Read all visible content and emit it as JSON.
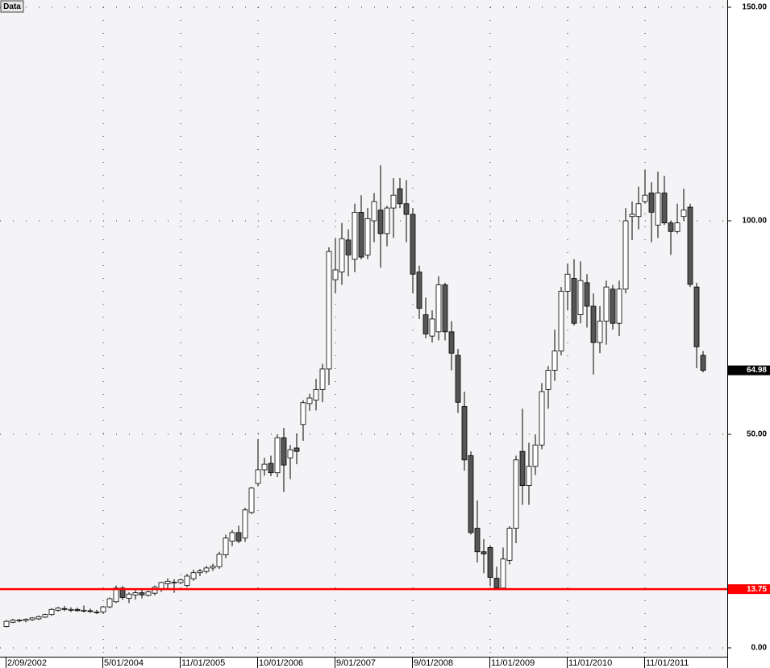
{
  "chart_data": {
    "type": "candlestick",
    "title": "Data",
    "ylim": [
      0,
      150
    ],
    "yticks": [
      {
        "value": 0,
        "label": "0.00"
      },
      {
        "value": 50,
        "label": "50.00"
      },
      {
        "value": 100,
        "label": "100.00"
      },
      {
        "value": 150,
        "label": "150.00"
      }
    ],
    "grid": true,
    "up_color": "#ffffff",
    "down_color": "#555555",
    "categories": [
      "2/09/2002",
      null,
      null,
      null,
      null,
      null,
      null,
      null,
      null,
      null,
      null,
      null,
      null,
      null,
      null,
      "5/01/2004",
      null,
      null,
      null,
      null,
      null,
      null,
      null,
      null,
      null,
      null,
      null,
      "11/01/2005",
      null,
      null,
      null,
      null,
      null,
      null,
      null,
      null,
      null,
      null,
      null,
      "10/01/2006",
      null,
      null,
      null,
      null,
      null,
      null,
      null,
      null,
      null,
      null,
      null,
      "9/01/2007",
      null,
      null,
      null,
      null,
      null,
      null,
      null,
      null,
      null,
      null,
      null,
      "9/01/2008",
      null,
      null,
      null,
      null,
      null,
      null,
      null,
      null,
      null,
      null,
      null,
      "11/01/2009",
      null,
      null,
      null,
      null,
      null,
      null,
      null,
      null,
      null,
      null,
      null,
      "11/01/2010",
      null,
      null,
      null,
      null,
      null,
      null,
      null,
      null,
      null,
      null,
      null,
      "11/01/2011",
      null,
      null,
      null,
      null,
      null,
      null,
      null,
      null,
      null
    ],
    "ohlc": [
      [
        5.0,
        6.5,
        4.8,
        6.2
      ],
      [
        6.0,
        6.8,
        5.8,
        6.5
      ],
      [
        6.3,
        6.8,
        6.0,
        6.5
      ],
      [
        6.4,
        6.9,
        6.0,
        6.7
      ],
      [
        6.6,
        7.2,
        6.3,
        7.0
      ],
      [
        6.8,
        7.6,
        6.5,
        7.3
      ],
      [
        7.2,
        8.0,
        7.0,
        7.8
      ],
      [
        7.8,
        9.3,
        7.5,
        9.0
      ],
      [
        8.8,
        9.6,
        8.5,
        9.3
      ],
      [
        9.2,
        9.8,
        8.6,
        9.0
      ],
      [
        8.8,
        9.5,
        8.4,
        9.0
      ],
      [
        9.0,
        9.4,
        8.5,
        8.7
      ],
      [
        8.6,
        9.9,
        8.3,
        8.8
      ],
      [
        8.7,
        9.2,
        8.2,
        8.5
      ],
      [
        8.3,
        8.9,
        7.9,
        8.4
      ],
      [
        8.4,
        9.8,
        8.0,
        9.6
      ],
      [
        9.6,
        11.8,
        9.3,
        11.5
      ],
      [
        10.8,
        14.6,
        10.5,
        14.0
      ],
      [
        14.0,
        14.5,
        11.2,
        11.8
      ],
      [
        11.6,
        13.0,
        10.5,
        12.6
      ],
      [
        12.4,
        13.6,
        11.3,
        12.9
      ],
      [
        12.9,
        13.8,
        11.6,
        12.4
      ],
      [
        12.3,
        13.4,
        12.0,
        13.1
      ],
      [
        12.8,
        14.6,
        12.3,
        14.2
      ],
      [
        13.8,
        15.5,
        13.1,
        15.3
      ],
      [
        15.0,
        16.3,
        13.9,
        15.6
      ],
      [
        15.3,
        16.1,
        12.9,
        15.4
      ],
      [
        15.3,
        16.2,
        14.9,
        15.9
      ],
      [
        14.6,
        17.3,
        14.2,
        16.8
      ],
      [
        16.2,
        18.3,
        15.7,
        17.6
      ],
      [
        17.6,
        18.5,
        16.8,
        18.0
      ],
      [
        17.9,
        19.2,
        17.4,
        18.7
      ],
      [
        18.7,
        19.7,
        18.0,
        19.1
      ],
      [
        19.0,
        22.5,
        18.5,
        21.9
      ],
      [
        21.8,
        26.5,
        21.0,
        25.7
      ],
      [
        25.0,
        27.6,
        23.8,
        27.0
      ],
      [
        27.0,
        28.6,
        24.5,
        25.0
      ],
      [
        25.7,
        32.8,
        24.8,
        32.3
      ],
      [
        31.7,
        37.7,
        31.3,
        37.4
      ],
      [
        38.5,
        48.9,
        37.8,
        41.7
      ],
      [
        41.7,
        44.5,
        40.3,
        43.0
      ],
      [
        43.2,
        45.0,
        40.2,
        41.0
      ],
      [
        41.0,
        50.0,
        40.0,
        49.2
      ],
      [
        49.2,
        51.5,
        36.5,
        42.8
      ],
      [
        44.5,
        47.5,
        39.5,
        46.4
      ],
      [
        46.8,
        50.2,
        43.0,
        46.0
      ],
      [
        52.3,
        58.0,
        48.5,
        57.4
      ],
      [
        57.2,
        59.5,
        55.5,
        58.5
      ],
      [
        58.0,
        63.0,
        55.6,
        60.5
      ],
      [
        60.5,
        66.5,
        57.5,
        65.3
      ],
      [
        65.3,
        93.8,
        61.5,
        92.8
      ],
      [
        86.2,
        96.0,
        83.0,
        88.5
      ],
      [
        88.0,
        99.5,
        85.0,
        95.8
      ],
      [
        95.5,
        98.0,
        87.0,
        92.0
      ],
      [
        91.0,
        104.0,
        88.0,
        102.0
      ],
      [
        102.0,
        106.0,
        91.0,
        91.5
      ],
      [
        92.0,
        103.0,
        91.0,
        100.5
      ],
      [
        100.0,
        106.5,
        95.0,
        104.5
      ],
      [
        102.5,
        113.0,
        89.0,
        97.0
      ],
      [
        97.0,
        103.5,
        94.0,
        103.0
      ],
      [
        103.0,
        110.0,
        96.0,
        106.0
      ],
      [
        107.5,
        110.0,
        103.0,
        104.0
      ],
      [
        104.0,
        109.5,
        95.0,
        101.5
      ],
      [
        101.5,
        103.0,
        83.0,
        87.5
      ],
      [
        88.0,
        89.5,
        77.0,
        79.5
      ],
      [
        78.0,
        82.0,
        72.5,
        73.5
      ],
      [
        73.0,
        79.0,
        71.5,
        77.0
      ],
      [
        74.0,
        87.0,
        72.0,
        85.0
      ],
      [
        85.0,
        85.5,
        72.0,
        74.0
      ],
      [
        74.0,
        76.5,
        65.0,
        69.0
      ],
      [
        68.5,
        70.0,
        55.0,
        57.5
      ],
      [
        56.5,
        60.0,
        41.5,
        44.0
      ],
      [
        45.0,
        46.0,
        26.5,
        27.0
      ],
      [
        28.0,
        34.5,
        20.0,
        22.5
      ],
      [
        22.5,
        25.5,
        17.5,
        22.0
      ],
      [
        23.5,
        24.0,
        14.5,
        16.5
      ],
      [
        16.3,
        19.0,
        13.7,
        14.0
      ],
      [
        14.0,
        23.5,
        13.7,
        20.8
      ],
      [
        20.5,
        28.5,
        19.5,
        28.0
      ],
      [
        28.0,
        45.0,
        24.5,
        44.0
      ],
      [
        46.0,
        56.0,
        33.5,
        38.0
      ],
      [
        38.0,
        48.0,
        33.5,
        42.5
      ],
      [
        42.5,
        50.0,
        40.5,
        47.5
      ],
      [
        47.5,
        62.0,
        46.5,
        60.0
      ],
      [
        60.5,
        66.0,
        56.0,
        65.0
      ],
      [
        65.0,
        74.5,
        62.5,
        69.5
      ],
      [
        69.5,
        84.5,
        68.5,
        83.5
      ],
      [
        83.5,
        90.0,
        79.0,
        87.5
      ],
      [
        86.5,
        91.0,
        75.5,
        76.0
      ],
      [
        78.0,
        90.5,
        76.0,
        86.0
      ],
      [
        85.5,
        87.5,
        75.0,
        80.0
      ],
      [
        80.0,
        83.0,
        64.0,
        71.5
      ],
      [
        71.5,
        80.0,
        69.0,
        76.5
      ],
      [
        76.5,
        86.0,
        71.0,
        84.5
      ],
      [
        84.0,
        85.0,
        74.5,
        76.0
      ],
      [
        76.0,
        86.0,
        73.0,
        84.0
      ],
      [
        84.0,
        103.0,
        83.0,
        100.0
      ],
      [
        101.0,
        104.5,
        95.5,
        101.5
      ],
      [
        101.0,
        108.0,
        98.0,
        104.0
      ],
      [
        104.5,
        112.0,
        104.0,
        106.0
      ],
      [
        106.5,
        109.0,
        95.0,
        102.0
      ],
      [
        99.0,
        111.5,
        96.0,
        106.5
      ],
      [
        106.5,
        110.5,
        99.0,
        99.5
      ],
      [
        99.5,
        100.0,
        92.0,
        97.5
      ],
      [
        97.5,
        104.0,
        97.0,
        99.5
      ],
      [
        101.0,
        107.5,
        100.0,
        102.5
      ],
      [
        103.2,
        104.0,
        84.5,
        85.1
      ],
      [
        84.5,
        85.5,
        65.5,
        70.5
      ],
      [
        68.5,
        69.5,
        64.5,
        64.98
      ]
    ],
    "hline": {
      "value": 13.75,
      "color": "#ff0000"
    },
    "last_price": {
      "value": 64.98,
      "color": "#000000"
    }
  }
}
